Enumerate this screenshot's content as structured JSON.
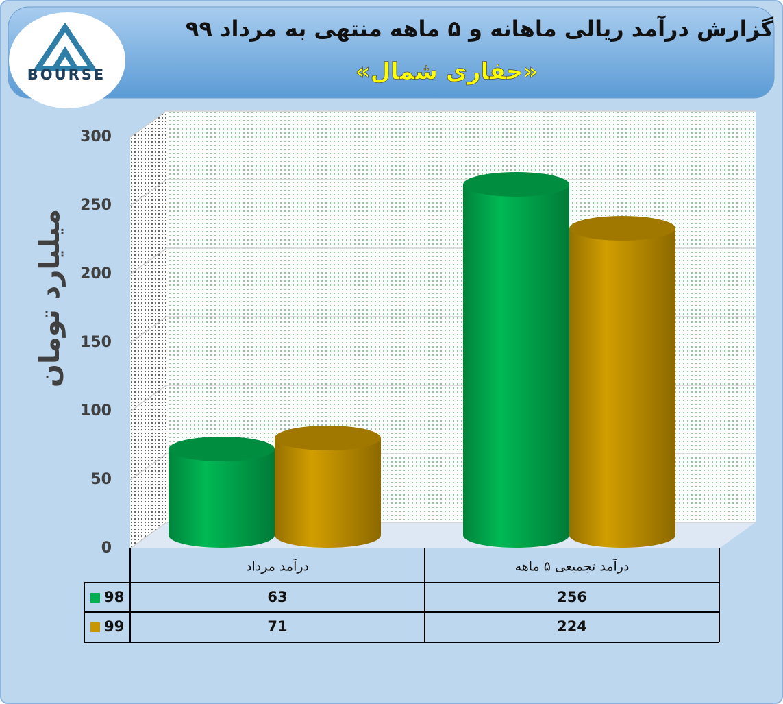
{
  "chart_data": {
    "type": "bar",
    "title": "گزارش درآمد ریالی ماهانه و ۵ ماهه منتهی به مرداد ۹۹",
    "subtitle": "«حفاری شمال»",
    "logo_text": "BOURSE",
    "y_label": "میلیارد تومان",
    "categories": [
      "درآمد مرداد",
      "درآمد تجمیعی ۵ ماهه"
    ],
    "series": [
      {
        "name": "98",
        "color": "#00b050",
        "values": [
          63,
          256
        ]
      },
      {
        "name": "99",
        "color": "#c89600",
        "values": [
          71,
          224
        ]
      }
    ],
    "ylim": [
      0,
      300
    ],
    "yticks": [
      0,
      50,
      100,
      150,
      200,
      250,
      300
    ],
    "grid": true
  }
}
